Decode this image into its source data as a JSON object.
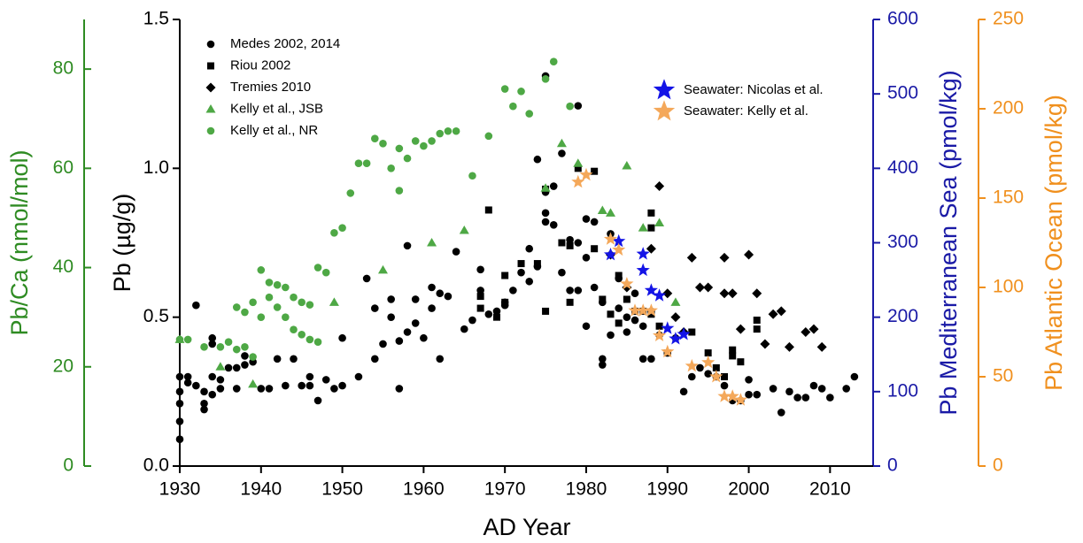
{
  "chart_data": {
    "type": "scatter",
    "xlabel": "AD Year",
    "xlim": [
      1930,
      2015.3
    ],
    "xticks": [
      1930,
      1940,
      1950,
      1960,
      1970,
      1980,
      1990,
      2000,
      2010
    ],
    "ylabel": "Pb (µg/g)",
    "ylim": [
      0,
      1.5
    ],
    "yticks": [
      {
        "value": 0,
        "label": "0.0"
      },
      0.5,
      {
        "value": 1,
        "label": "1.0"
      },
      1.5
    ],
    "ycolor": "#000000",
    "y2label": "Pb/Ca (nmol/mol)",
    "y2lim": [
      0,
      90
    ],
    "y2ticks": [
      0,
      20,
      40,
      60,
      80
    ],
    "y2color": "#2e8b22",
    "y3label": "Pb  Mediterranean Sea (pmol/kg)",
    "y3lim": [
      0,
      600
    ],
    "y3ticks": [
      0,
      100,
      200,
      300,
      400,
      500,
      600
    ],
    "y3color": "#1a1aa6",
    "y4label": "Pb  Atlantic Ocean (pmol/kg)",
    "y4lim": [
      0,
      250
    ],
    "y4ticks": [
      0,
      50,
      100,
      150,
      200,
      250
    ],
    "y4color": "#f0901e",
    "series": [
      {
        "name": "Medes 2002, 2014",
        "color": "#000000",
        "marker": "circle",
        "axis": "y",
        "x": [
          1930,
          1930,
          1930,
          1930,
          1931,
          1931,
          1932,
          1932,
          1933,
          1933,
          1933,
          1934,
          1934,
          1934,
          1934,
          1935,
          1935,
          1936,
          1937,
          1937,
          1938,
          1938,
          1939,
          1940,
          1941,
          1942,
          1943,
          1944,
          1945,
          1946,
          1946,
          1947,
          1948,
          1949,
          1950,
          1950,
          1952,
          1953,
          1954,
          1954,
          1955,
          1956,
          1956,
          1957,
          1957,
          1958,
          1958,
          1959,
          1959,
          1960,
          1961,
          1961,
          1962,
          1962,
          1963,
          1964,
          1965,
          1966,
          1967,
          1967,
          1968,
          1969,
          1970,
          1970,
          1971,
          1972,
          1973,
          1973,
          1974,
          1974,
          1975,
          1975,
          1975,
          1976,
          1976,
          1977,
          1977,
          1978,
          1978,
          1979,
          1979,
          1979,
          1980,
          1980,
          1980,
          1981,
          1981,
          1982,
          1982,
          1982,
          1983,
          1983,
          1984,
          1984,
          1985,
          1985,
          1986,
          1986,
          1987,
          1987,
          1988,
          1988,
          1989,
          1990,
          1991,
          1992,
          1993,
          1994,
          1995,
          1996,
          1997,
          1998,
          1999,
          2000,
          2000,
          2001,
          2003,
          2004,
          2005,
          2006,
          2007,
          2008,
          2009,
          2010,
          2012,
          2013,
          1930,
          1975
        ],
        "values": [
          0.15,
          0.25,
          0.3,
          0.21,
          0.3,
          0.28,
          0.54,
          0.27,
          0.19,
          0.25,
          0.21,
          0.41,
          0.43,
          0.24,
          0.3,
          0.29,
          0.26,
          0.33,
          0.33,
          0.26,
          0.37,
          0.34,
          0.35,
          0.26,
          0.26,
          0.36,
          0.27,
          0.36,
          0.27,
          0.27,
          0.3,
          0.22,
          0.29,
          0.26,
          0.43,
          0.27,
          0.3,
          0.63,
          0.36,
          0.53,
          0.41,
          0.5,
          0.56,
          0.26,
          0.42,
          0.74,
          0.45,
          0.48,
          0.56,
          0.43,
          0.6,
          0.53,
          0.36,
          0.58,
          0.57,
          0.72,
          0.46,
          0.49,
          0.59,
          0.66,
          0.51,
          0.52,
          0.54,
          0.55,
          0.59,
          0.65,
          0.73,
          0.62,
          1.03,
          0.67,
          0.85,
          0.82,
          0.92,
          0.94,
          0.81,
          1.05,
          0.65,
          0.76,
          0.59,
          0.75,
          1.21,
          0.59,
          0.83,
          0.47,
          0.7,
          0.82,
          0.6,
          0.36,
          0.34,
          0.55,
          0.78,
          0.44,
          0.63,
          0.53,
          0.5,
          0.45,
          0.58,
          0.49,
          0.36,
          0.47,
          0.36,
          0.52,
          0.44,
          0.38,
          0.43,
          0.25,
          0.3,
          0.33,
          0.31,
          0.3,
          0.27,
          0.22,
          0.22,
          0.24,
          0.29,
          0.24,
          0.26,
          0.18,
          0.25,
          0.23,
          0.23,
          0.27,
          0.26,
          0.23,
          0.26,
          0.3,
          0.09,
          1.31
        ]
      },
      {
        "name": "Riou 2002",
        "color": "#000000",
        "marker": "square",
        "axis": "y",
        "x": [
          1967,
          1967,
          1969,
          1970,
          1970,
          1972,
          1974,
          1975,
          1975,
          1977,
          1978,
          1978,
          1979,
          1981,
          1981,
          1982,
          1983,
          1984,
          1984,
          1985,
          1986,
          1987,
          1988,
          1988,
          1988,
          1989,
          1990,
          1993,
          1995,
          1996,
          1997,
          1998,
          1998,
          1999,
          2001,
          2001,
          1968
        ],
        "values": [
          0.57,
          0.53,
          0.5,
          0.64,
          0.55,
          0.68,
          0.68,
          0.52,
          0.93,
          0.75,
          0.55,
          0.74,
          1.0,
          0.99,
          0.73,
          0.56,
          0.51,
          0.48,
          0.64,
          0.56,
          0.52,
          0.52,
          0.85,
          0.51,
          0.8,
          0.47,
          0.38,
          0.45,
          0.38,
          0.33,
          0.3,
          0.37,
          0.39,
          0.35,
          0.49,
          0.46,
          0.86
        ]
      },
      {
        "name": "Tremies 2010",
        "color": "#000000",
        "marker": "diamond",
        "axis": "y",
        "x": [
          1983,
          1985,
          1988,
          1989,
          1990,
          1991,
          1993,
          1994,
          1995,
          1997,
          1998,
          1999,
          2000,
          2001,
          2002,
          2003,
          2004,
          2005,
          2007,
          2008,
          2009,
          1997,
          1992
        ],
        "values": [
          0.71,
          0.6,
          0.73,
          0.94,
          0.58,
          0.5,
          0.7,
          0.6,
          0.6,
          0.7,
          0.58,
          0.46,
          0.71,
          0.58,
          0.41,
          0.51,
          0.52,
          0.4,
          0.45,
          0.46,
          0.4,
          0.58,
          0.45
        ]
      },
      {
        "name": "Kelly et al., JSB",
        "color": "#4ea845",
        "marker": "triangle",
        "axis": "y2",
        "x": [
          1930,
          1935,
          1939,
          1949,
          1955,
          1961,
          1965,
          1975,
          1977,
          1979,
          1982,
          1983,
          1985,
          1987,
          1989,
          1991
        ],
        "values": [
          25.5,
          20,
          16.5,
          33,
          39.5,
          45,
          47.5,
          56,
          65,
          61,
          51.5,
          51,
          60.5,
          48,
          49,
          33
        ]
      },
      {
        "name": "Kelly et al., NR",
        "color": "#4ea845",
        "marker": "circle",
        "axis": "y2",
        "x": [
          1930,
          1931,
          1933,
          1935,
          1936,
          1937,
          1938,
          1939,
          1937,
          1938,
          1939,
          1940,
          1940,
          1941,
          1941,
          1942,
          1942,
          1943,
          1943,
          1944,
          1944,
          1945,
          1945,
          1946,
          1946,
          1947,
          1947,
          1948,
          1949,
          1950,
          1951,
          1952,
          1953,
          1954,
          1955,
          1956,
          1957,
          1957,
          1958,
          1959,
          1960,
          1961,
          1962,
          1963,
          1964,
          1966,
          1968,
          1970,
          1971,
          1972,
          1973,
          1975,
          1976,
          1978
        ],
        "values": [
          25.5,
          25.5,
          24,
          24,
          25,
          23.5,
          24,
          22,
          32,
          31,
          33,
          30,
          39.5,
          37,
          34,
          36.5,
          32,
          36,
          30,
          34,
          27.5,
          33,
          26.5,
          32.5,
          25.5,
          40,
          25,
          39,
          47,
          48,
          55,
          61,
          61,
          66,
          65,
          60,
          55.5,
          64,
          62,
          65.5,
          64.5,
          65.5,
          67,
          67.5,
          67.5,
          58.5,
          66.5,
          76,
          72.5,
          75.5,
          71,
          78,
          81.5,
          72.5
        ]
      },
      {
        "name": "Seawater: Nicolas et al.",
        "color": "#1414e6",
        "marker": "star",
        "axis": "y3",
        "x": [
          1983,
          1984,
          1987,
          1987,
          1988,
          1989,
          1990,
          1991,
          1992
        ],
        "values": [
          284,
          302,
          285,
          263,
          236,
          229,
          185,
          171,
          177
        ]
      },
      {
        "name": "Seawater: Kelly et al.",
        "color": "#f4a85a",
        "marker": "star",
        "axis": "y4",
        "x": [
          1979,
          1980,
          1983,
          1984,
          1985,
          1986,
          1987,
          1988,
          1989,
          1990,
          1993,
          1995,
          1996,
          1997,
          1998,
          1999
        ],
        "values": [
          159,
          163,
          127,
          121,
          102,
          87,
          87,
          87,
          73,
          64,
          56,
          58,
          50,
          39,
          39,
          37
        ]
      }
    ]
  }
}
